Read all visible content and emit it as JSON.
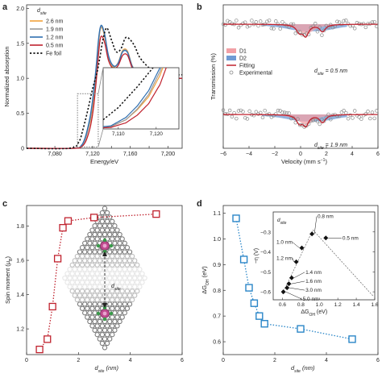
{
  "panels": [
    {
      "id": "a",
      "label": "a",
      "chart_data": {
        "type": "line",
        "xlabel": "Energy/eV",
        "ylabel": "Normalized absorption",
        "xlim": [
          7050,
          7215
        ],
        "ylim": [
          0,
          2.05
        ],
        "xticks": [
          7080,
          7100,
          7120,
          7140,
          7160,
          7180,
          7200
        ],
        "xtick_labels": [
          "7,080",
          "",
          "7,120",
          "",
          "7,160",
          "",
          "7,200"
        ],
        "yticks": [
          0,
          0.5,
          1.0,
          1.5,
          2.0
        ],
        "ytick_labels": [
          "0",
          "0.5",
          "1.0",
          "1.5",
          "2.0"
        ],
        "legend_title": "d",
        "legend_title_sub": "site",
        "legend_position": "top-left",
        "series": [
          {
            "name": "2.6 nm",
            "color": "#f2a23a",
            "dash": "",
            "x": [
              7050,
              7100,
              7108,
              7112,
              7115,
              7118,
              7121,
              7124,
              7126,
              7128,
              7130,
              7133,
              7137,
              7142,
              7147,
              7152,
              7157,
              7162,
              7168,
              7175,
              7185,
              7195,
              7205,
              7215
            ],
            "y": [
              0,
              0,
              0.03,
              0.12,
              0.25,
              0.42,
              0.7,
              1.1,
              1.45,
              1.69,
              1.72,
              1.58,
              1.28,
              1.16,
              1.22,
              1.4,
              1.39,
              1.18,
              1.06,
              1.02,
              1.01,
              1.0,
              1.0,
              1.0
            ]
          },
          {
            "name": "1.9 nm",
            "color": "#9a9a9a",
            "dash": "",
            "x": [
              7050,
              7100,
              7108,
              7112,
              7115,
              7118,
              7121,
              7124,
              7126,
              7128,
              7130,
              7133,
              7137,
              7142,
              7147,
              7152,
              7157,
              7162,
              7168,
              7175,
              7185,
              7195,
              7205,
              7215
            ],
            "y": [
              0,
              0,
              0.03,
              0.12,
              0.26,
              0.45,
              0.75,
              1.15,
              1.48,
              1.7,
              1.73,
              1.6,
              1.3,
              1.17,
              1.22,
              1.39,
              1.38,
              1.18,
              1.06,
              1.02,
              1.01,
              1.0,
              1.0,
              1.0
            ]
          },
          {
            "name": "1.2 nm",
            "color": "#2f6fb0",
            "dash": "",
            "x": [
              7050,
              7100,
              7108,
              7112,
              7115,
              7118,
              7121,
              7124,
              7126,
              7128,
              7130,
              7133,
              7137,
              7142,
              7147,
              7152,
              7157,
              7162,
              7168,
              7175,
              7185,
              7195,
              7205,
              7215
            ],
            "y": [
              0,
              0,
              0.04,
              0.15,
              0.3,
              0.5,
              0.8,
              1.2,
              1.52,
              1.72,
              1.75,
              1.62,
              1.32,
              1.18,
              1.21,
              1.38,
              1.37,
              1.17,
              1.06,
              1.02,
              1.01,
              1.0,
              1.0,
              1.0
            ]
          },
          {
            "name": "0.5 nm",
            "color": "#c0222e",
            "dash": "",
            "x": [
              7050,
              7100,
              7108,
              7112,
              7115,
              7118,
              7121,
              7124,
              7126,
              7128,
              7130,
              7133,
              7137,
              7142,
              7147,
              7152,
              7157,
              7162,
              7168,
              7175,
              7185,
              7195,
              7205,
              7215
            ],
            "y": [
              0,
              0,
              0.02,
              0.08,
              0.18,
              0.33,
              0.58,
              0.98,
              1.3,
              1.55,
              1.6,
              1.5,
              1.25,
              1.14,
              1.18,
              1.33,
              1.33,
              1.15,
              1.05,
              1.02,
              1.01,
              1.0,
              1.0,
              1.0
            ]
          },
          {
            "name": "Fe foil",
            "color": "#111111",
            "dash": "2.2,2.2",
            "x": [
              7050,
              7095,
              7105,
              7110,
              7115,
              7120,
              7125,
              7128,
              7131,
              7135,
              7140,
              7145,
              7150,
              7155,
              7160,
              7165,
              7170,
              7180,
              7190,
              7200,
              7215
            ],
            "y": [
              0,
              0,
              0.08,
              0.28,
              0.55,
              0.85,
              1.1,
              1.32,
              1.55,
              1.72,
              1.55,
              1.38,
              1.42,
              1.58,
              1.55,
              1.45,
              1.3,
              1.15,
              1.08,
              1.05,
              1.05
            ]
          }
        ],
        "annotation": "dotted box marks the pre-edge zoom region",
        "inset": {
          "xlim": [
            7106,
            7126
          ],
          "ylim": [
            0,
            0.8
          ],
          "xticks": [
            7110,
            7120
          ],
          "xtick_labels": [
            "7,110",
            "7,120"
          ]
        }
      }
    },
    {
      "id": "b",
      "label": "b",
      "chart_data": {
        "type": "scatter",
        "xlabel": "Velocity (mm s",
        "xlabel_sup": "−1",
        "xlabel_close": ")",
        "ylabel": "Transmission (%)",
        "xlim": [
          -6,
          6
        ],
        "xticks": [
          -6,
          -4,
          -2,
          0,
          2,
          4,
          6
        ],
        "legend": [
          {
            "name": "D1",
            "color": "#f2a0a6",
            "kind": "patch"
          },
          {
            "name": "D2",
            "color": "#6f9bd4",
            "kind": "patch"
          },
          {
            "name": "Fitting",
            "color": "#c0222e",
            "kind": "line"
          },
          {
            "name": "Experimental",
            "color": "#8a8a8a",
            "kind": "marker"
          }
        ],
        "spectra": [
          {
            "label": "d",
            "label_sub": "site",
            "label_value": "= 0.5 nm",
            "baseline": 100,
            "dips": [
              [
                -0.1,
                2.2
              ],
              [
                1.7,
                2.2
              ],
              [
                0.4,
                3.4
              ]
            ]
          },
          {
            "label": "d",
            "label_sub": "site",
            "label_value": "= 1.9 nm",
            "baseline": 100,
            "dips": [
              [
                -0.1,
                2.4
              ],
              [
                1.7,
                2.4
              ],
              [
                0.4,
                3.2
              ]
            ]
          }
        ]
      }
    },
    {
      "id": "c",
      "label": "c",
      "chart_data": {
        "type": "scatter",
        "xlabel": "d",
        "xlabel_sub": "site",
        "xlabel_unit": " (nm)",
        "ylabel": "Spin moment (μ",
        "ylabel_sub": "B",
        "ylabel_close": ")",
        "xlim": [
          0,
          6
        ],
        "ylim": [
          1.05,
          1.92
        ],
        "xticks": [
          0,
          2,
          4,
          6
        ],
        "yticks": [
          1.2,
          1.4,
          1.6,
          1.8
        ],
        "ytick_labels": [
          "1.2",
          "1.4",
          "1.6",
          "1.8"
        ],
        "marker_color": "#c0222e",
        "x": [
          0.5,
          0.8,
          1.0,
          1.2,
          1.4,
          1.6,
          2.6,
          5.0
        ],
        "y": [
          1.08,
          1.14,
          1.33,
          1.61,
          1.79,
          1.83,
          1.85,
          1.87
        ],
        "inset_label": "d",
        "inset_label_sub": "site"
      }
    },
    {
      "id": "d",
      "label": "d",
      "chart_data": {
        "type": "scatter",
        "xlabel": "d",
        "xlabel_sub": "site",
        "xlabel_unit": " (nm)",
        "ylabel": "ΔG",
        "ylabel_sub": "OH",
        "ylabel_close": " (eV)",
        "xlim": [
          0,
          6
        ],
        "ylim": [
          0.55,
          1.13
        ],
        "xticks": [
          0,
          2,
          4,
          6
        ],
        "yticks": [
          0.6,
          0.7,
          0.8,
          0.9,
          1.0,
          1.1
        ],
        "ytick_labels": [
          "0.6",
          "0.7",
          "0.8",
          "0.9",
          "1.0",
          "1.1"
        ],
        "marker_color": "#2a86c8",
        "x": [
          0.5,
          0.8,
          1.0,
          1.2,
          1.4,
          1.6,
          3.0,
          5.0
        ],
        "y": [
          1.08,
          0.92,
          0.81,
          0.75,
          0.7,
          0.67,
          0.65,
          0.61
        ],
        "inset": {
          "xlabel": "ΔG",
          "xlabel_sub": "OH",
          "xlabel_unit": " (eV)",
          "ylabel": "−η (V)",
          "xlim": [
            0.5,
            1.6
          ],
          "ylim": [
            -0.2,
            -0.64
          ],
          "xticks": [
            0.6,
            0.8,
            1.0,
            1.2,
            1.4,
            1.6
          ],
          "xtick_labels": [
            "0.6",
            "0.8",
            "1.0",
            "1.2",
            "1.4",
            "1.6"
          ],
          "yticks": [
            -0.3,
            -0.4,
            -0.5,
            -0.6
          ],
          "ytick_labels": [
            "−0.3",
            "−0.4",
            "−0.5",
            "−0.6"
          ],
          "legend_title": "d",
          "legend_title_sub": "site",
          "points": [
            {
              "label": "0.5 nm",
              "x": 1.07,
              "y": -0.33
            },
            {
              "label": "0.8 nm",
              "x": 0.92,
              "y": -0.31
            },
            {
              "label": "1.0 nm",
              "x": 0.81,
              "y": -0.38
            },
            {
              "label": "1.2 nm",
              "x": 0.75,
              "y": -0.45
            },
            {
              "label": "1.4 nm",
              "x": 0.7,
              "y": -0.53
            },
            {
              "label": "1.6 nm",
              "x": 0.67,
              "y": -0.56
            },
            {
              "label": "3.0 nm",
              "x": 0.65,
              "y": -0.58
            },
            {
              "label": "5.0 nm",
              "x": 0.61,
              "y": -0.6
            }
          ]
        }
      }
    }
  ]
}
